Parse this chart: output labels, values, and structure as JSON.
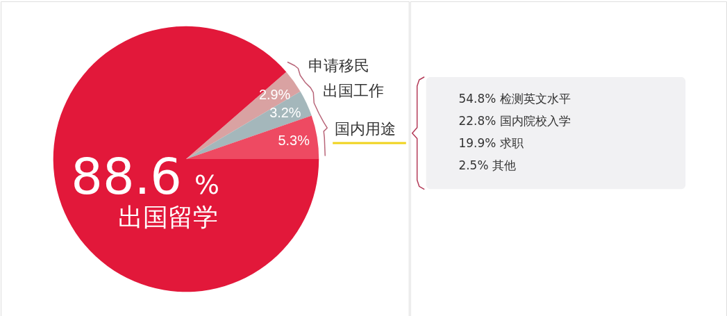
{
  "chart_data": [
    {
      "type": "pie",
      "categories": [
        "申请移民",
        "出国工作",
        "国内用途",
        "出国留学"
      ],
      "values": [
        2.9,
        3.2,
        5.3,
        88.6
      ],
      "colors": [
        "#d9a2a2",
        "#a4b7bb",
        "#ee4a62",
        "#e2183a"
      ],
      "value_labels": [
        "2.9%",
        "3.2%",
        "5.3%",
        "88.6%"
      ]
    },
    {
      "type": "other",
      "annotations": [
        "54.8% 检测英文水平",
        "22.8% 国内院校入学",
        "19.9% 求职",
        "2.5% 其他"
      ]
    }
  ]
}
